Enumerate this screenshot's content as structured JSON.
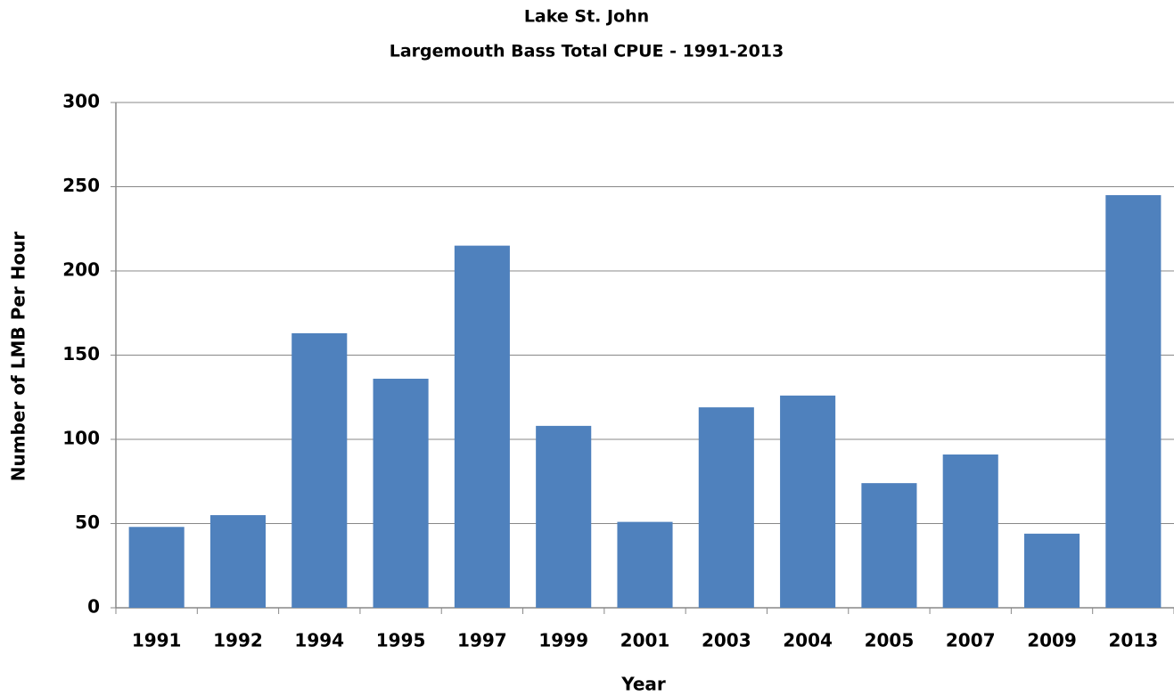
{
  "chart_data": {
    "type": "bar",
    "title": "Lake St. John",
    "subtitle": "Largemouth Bass Total CPUE - 1991-2013",
    "x_label": "Year",
    "y_label": "Number of LMB Per Hour",
    "categories": [
      "1991",
      "1992",
      "1994",
      "1995",
      "1997",
      "1999",
      "2001",
      "2003",
      "2004",
      "2005",
      "2007",
      "2009",
      "2013"
    ],
    "values": [
      48,
      55,
      163,
      136,
      215,
      108,
      51,
      119,
      126,
      74,
      91,
      44,
      245
    ],
    "color": "#4f81bd",
    "ylim": [
      0,
      300
    ],
    "yticks": [
      0,
      50,
      100,
      150,
      200,
      250,
      300
    ],
    "grid": true
  }
}
